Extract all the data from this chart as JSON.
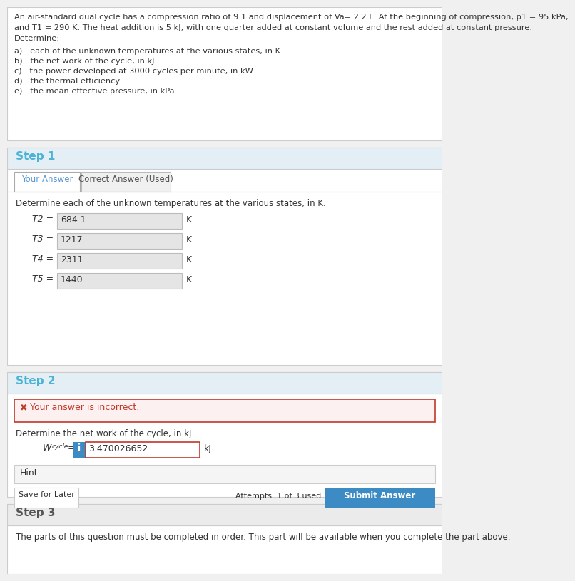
{
  "problem_text_line1": "An air-standard dual cycle has a compression ratio of 9.1 and displacement of Va= 2.2 L. At the beginning of compression, p1 = 95 kPa,",
  "problem_text_line2": "and T1 = 290 K. The heat addition is 5 kJ, with one quarter added at constant volume and the rest added at constant pressure.",
  "problem_text_line3": "Determine:",
  "problem_items": [
    "a)   each of the unknown temperatures at the various states, in K.",
    "b)   the net work of the cycle, in kJ.",
    "c)   the power developed at 3000 cycles per minute, in kW.",
    "d)   the thermal efficiency.",
    "e)   the mean effective pressure, in kPa."
  ],
  "step1_title": "Step 1",
  "tab1_label": "Your Answer",
  "tab2_label": "Correct Answer (Used)",
  "step1_question": "Determine each of the unknown temperatures at the various states, in K.",
  "step1_rows": [
    {
      "label": "T2 =",
      "value": "684.1",
      "unit": "K"
    },
    {
      "label": "T3 =",
      "value": "1217",
      "unit": "K"
    },
    {
      "label": "T4 =",
      "value": "2311",
      "unit": "K"
    },
    {
      "label": "T5 =",
      "value": "1440",
      "unit": "K"
    }
  ],
  "step2_title": "Step 2",
  "error_text": "   Your answer is incorrect.",
  "step2_question": "Determine the net work of the cycle, in kJ.",
  "wcycle_label": "Wcycle =",
  "wcycle_value": "3.470026652",
  "wcycle_unit": "kJ",
  "hint_label": "Hint",
  "save_label": "Save for Later",
  "attempts_text": "Attempts: 1 of 3 used",
  "submit_label": "Submit Answer",
  "step3_title": "Step 3",
  "step3_text": "The parts of this question must be completed in order. This part will be available when you complete the part above.",
  "bg_main": "#f0f0f0",
  "bg_white": "#ffffff",
  "bg_step_header": "#e4eef5",
  "bg_error": "#fdf0f0",
  "bg_step3_header": "#ebebeb",
  "color_step_title_blue": "#4db3d4",
  "color_step3_title": "#555555",
  "color_tab_active": "#5b9bd5",
  "color_error_border": "#c0392b",
  "color_error_text": "#c0392b",
  "color_body_text": "#333333",
  "color_input_bg": "#e5e5e5",
  "color_input_bg_error": "#ffffff",
  "color_hint_bg": "#f5f5f5",
  "color_btn_submit": "#3d8bc4",
  "color_section_border": "#cccccc",
  "color_tab_inactive_bg": "#f0f0f0"
}
